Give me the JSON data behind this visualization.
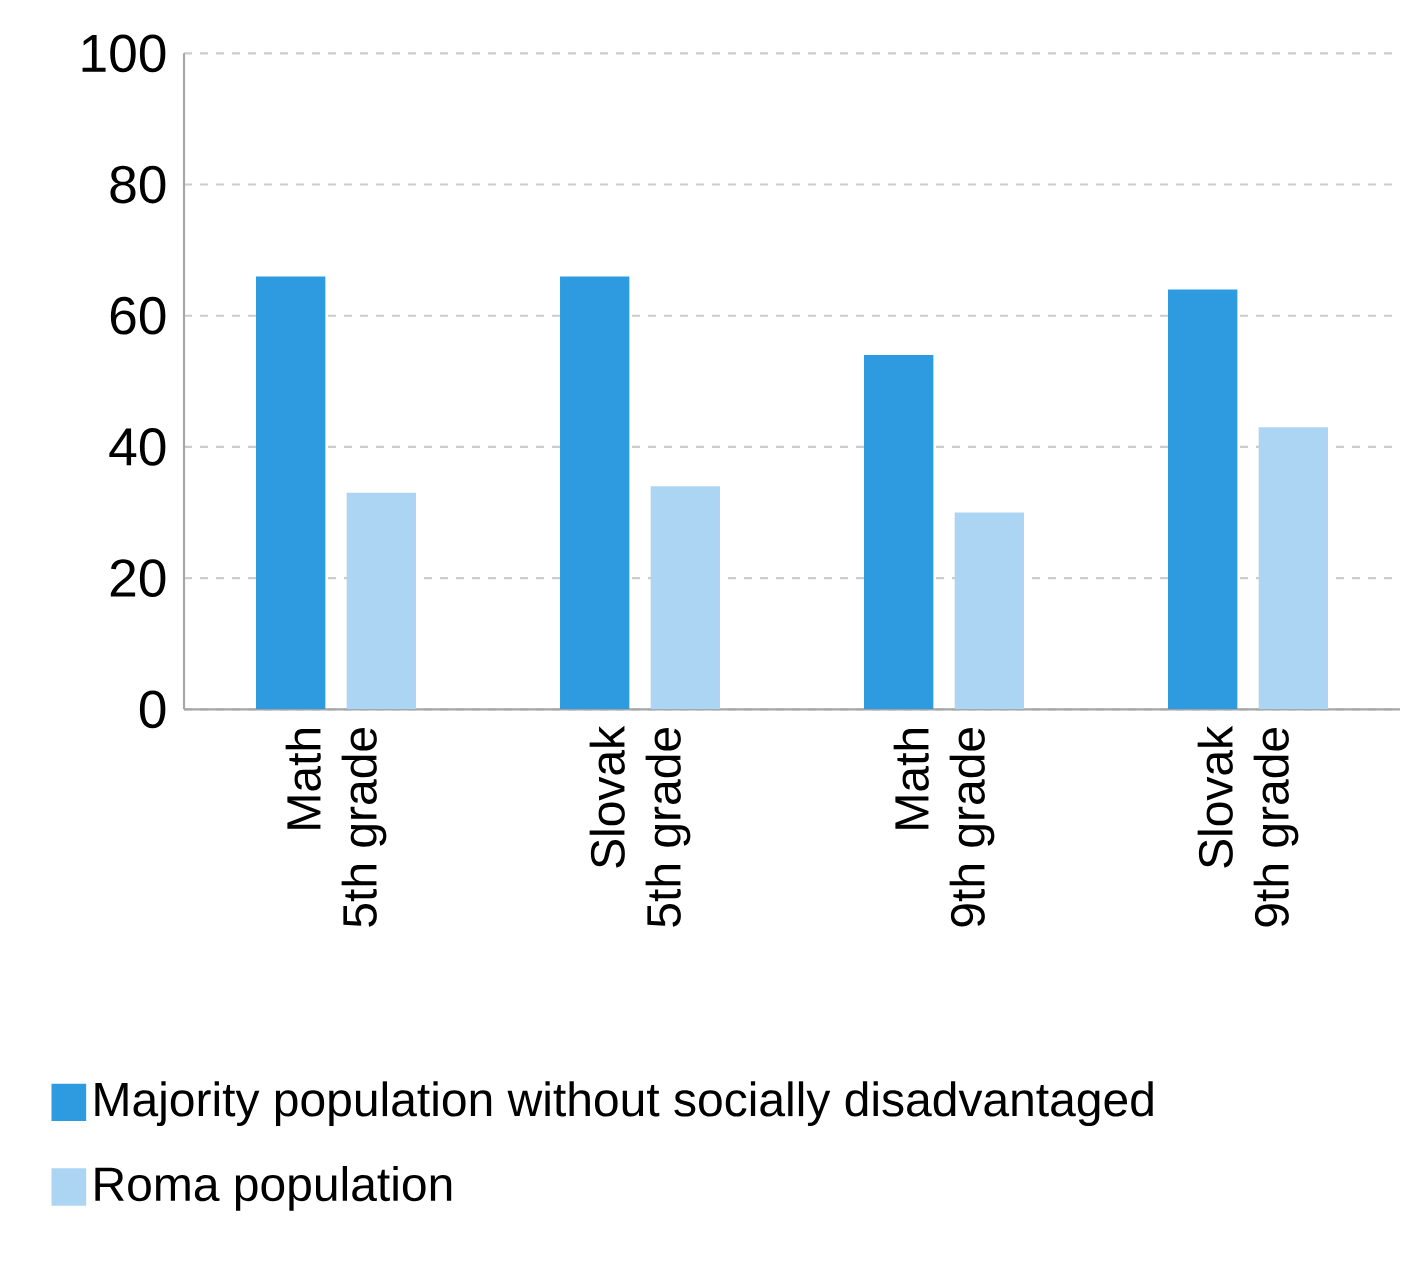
{
  "chart_data": {
    "type": "bar",
    "categories": [
      "Math\n5th grade",
      "Slovak\n5th grade",
      "Math\n9th grade",
      "Slovak\n9th grade"
    ],
    "series": [
      {
        "name": "Majority population without socially disadvantaged",
        "color": "#2e9be0",
        "values": [
          66,
          66,
          54,
          64
        ]
      },
      {
        "name": "Roma population",
        "color": "#acd5f4",
        "values": [
          33,
          34,
          30,
          43
        ]
      }
    ],
    "ylim": [
      0,
      100
    ],
    "yticks": [
      0,
      20,
      40,
      60,
      80,
      100
    ],
    "grid": "y",
    "legend": "bottom"
  }
}
